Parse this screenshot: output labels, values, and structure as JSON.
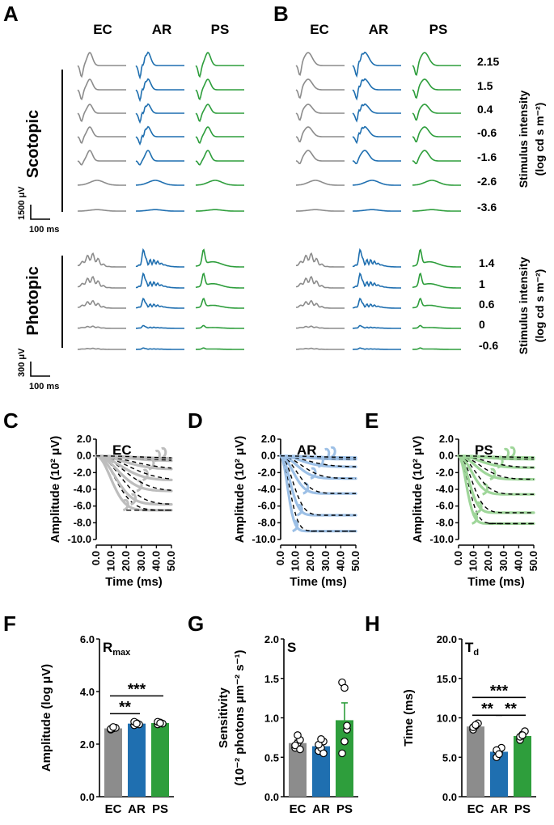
{
  "panels": {
    "A": "A",
    "B": "B",
    "C": "C",
    "D": "D",
    "E": "E",
    "F": "F",
    "G": "G",
    "H": "H"
  },
  "groups": [
    "EC",
    "AR",
    "PS"
  ],
  "colors": {
    "EC": "#8c8c8c",
    "AR": "#1f6fb0",
    "PS": "#2e9e3c",
    "EC_light": "#bdbdbd",
    "AR_light": "#9dc0e6",
    "PS_light": "#9fd69a"
  },
  "erg": {
    "scotopic_label": "Scotopic",
    "photopic_label": "Photopic",
    "scotopic_intensities": [
      "2.15",
      "1.5",
      "0.4",
      "-0.6",
      "-1.6",
      "-2.6",
      "-3.6"
    ],
    "photopic_intensities": [
      "1.4",
      "1",
      "0.6",
      "0",
      "-0.6"
    ],
    "intensity_axis_label": "Stimulus intensity",
    "intensity_axis_unit": "(log cd s m⁻²)",
    "scotopic_scale_amp": "1500 μV",
    "scotopic_scale_time": "100 ms",
    "photopic_scale_amp": "300 μV",
    "photopic_scale_time": "100 ms"
  },
  "chart_data": [
    {
      "type": "line",
      "panel": "C",
      "group": "EC",
      "title": "EC",
      "xlabel": "Time (ms)",
      "ylabel": "Amplitude (10² μV)",
      "xticks": [
        "0.0",
        "10.0",
        "20.0",
        "30.0",
        "40.0",
        "50.0"
      ],
      "yticks": [
        "2.0",
        "0.0",
        "-2.0",
        "-4.0",
        "-6.0",
        "-8.0",
        "-10.0"
      ],
      "xlim": [
        0,
        50
      ],
      "ylim": [
        -10,
        2
      ],
      "trough_amplitudes": [
        -6.5,
        -5.8,
        -4.2,
        -2.9,
        -1.6,
        -0.6,
        -0.3
      ],
      "trough_times": [
        19,
        24,
        28,
        32,
        36,
        40,
        44
      ],
      "rmax_fit": -6.5
    },
    {
      "type": "line",
      "panel": "D",
      "group": "AR",
      "title": "AR",
      "xlabel": "Time (ms)",
      "ylabel": "Amplitude (10² μV)",
      "xticks": [
        "0.0",
        "10.0",
        "20.0",
        "30.0",
        "40.0",
        "50.0"
      ],
      "yticks": [
        "2.0",
        "0.0",
        "-2.0",
        "-4.0",
        "-6.0",
        "-8.0",
        "-10.0"
      ],
      "xlim": [
        0,
        50
      ],
      "ylim": [
        -10,
        2
      ],
      "trough_amplitudes": [
        -9.0,
        -7.1,
        -4.5,
        -2.7,
        -1.3,
        -0.4,
        -0.2
      ],
      "trough_times": [
        9,
        12,
        16,
        21,
        26,
        30,
        34
      ],
      "rmax_fit": -9.0
    },
    {
      "type": "line",
      "panel": "E",
      "group": "PS",
      "title": "PS",
      "xlabel": "Time (ms)",
      "ylabel": "Amplitude (10² μV)",
      "xticks": [
        "0.0",
        "10.0",
        "20.0",
        "30.0",
        "40.0",
        "50.0"
      ],
      "yticks": [
        "2.0",
        "0.0",
        "-2.0",
        "-4.0",
        "-6.0",
        "-8.0",
        "-10.0"
      ],
      "xlim": [
        0,
        50
      ],
      "ylim": [
        -10,
        2
      ],
      "trough_amplitudes": [
        -8.1,
        -6.8,
        -4.6,
        -2.8,
        -1.4,
        -0.4,
        -0.2
      ],
      "trough_times": [
        10,
        13,
        17,
        22,
        27,
        31,
        35
      ],
      "rmax_fit": -8.1
    },
    {
      "type": "bar",
      "panel": "F",
      "title": "R",
      "title_sub": "max",
      "categories": [
        "EC",
        "AR",
        "PS"
      ],
      "values": [
        2.6,
        2.78,
        2.8
      ],
      "errors": [
        0.03,
        0.04,
        0.03
      ],
      "points": [
        [
          2.55,
          2.6,
          2.62,
          2.58,
          2.65
        ],
        [
          2.72,
          2.8,
          2.75,
          2.85,
          2.78
        ],
        [
          2.75,
          2.82,
          2.78,
          2.85,
          2.8
        ]
      ],
      "ylabel": "Amplitude (log μV)",
      "yticks": [
        "0.0",
        "2.0",
        "4.0",
        "6.0"
      ],
      "ylim": [
        0,
        6
      ],
      "significance": [
        {
          "pair": [
            "EC",
            "AR"
          ],
          "label": "**"
        },
        {
          "pair": [
            "EC",
            "PS"
          ],
          "label": "***"
        }
      ]
    },
    {
      "type": "bar",
      "panel": "G",
      "title": "S",
      "categories": [
        "EC",
        "AR",
        "PS"
      ],
      "values": [
        0.68,
        0.64,
        0.97
      ],
      "errors": [
        0.04,
        0.05,
        0.22
      ],
      "points": [
        [
          0.62,
          0.68,
          0.72,
          0.65,
          0.78,
          0.6
        ],
        [
          0.58,
          0.62,
          0.7,
          0.66,
          0.73,
          0.55
        ],
        [
          0.55,
          0.7,
          0.85,
          1.45,
          1.38,
          0.9
        ]
      ],
      "ylabel": "Sensitivity",
      "ylabel2": "(10⁻² photons μm⁻² s⁻¹)",
      "yticks": [
        "0.0",
        "0.5",
        "1.0",
        "1.5",
        "2.0"
      ],
      "ylim": [
        0,
        2
      ],
      "significance": []
    },
    {
      "type": "bar",
      "panel": "H",
      "title": "T",
      "title_sub": "d",
      "categories": [
        "EC",
        "AR",
        "PS"
      ],
      "values": [
        8.9,
        5.7,
        7.7
      ],
      "errors": [
        0.25,
        0.35,
        0.3
      ],
      "points": [
        [
          8.5,
          9.0,
          9.3,
          8.8,
          9.1
        ],
        [
          5.0,
          5.6,
          6.2,
          5.9,
          5.4
        ],
        [
          7.2,
          7.9,
          8.3,
          7.6,
          7.8
        ]
      ],
      "ylabel": "Time (ms)",
      "yticks": [
        "0.0",
        "5.0",
        "10.0",
        "15.0",
        "20.0"
      ],
      "ylim": [
        0,
        20
      ],
      "significance": [
        {
          "pair": [
            "EC",
            "AR"
          ],
          "label": "**"
        },
        {
          "pair": [
            "AR",
            "PS"
          ],
          "label": "**"
        },
        {
          "pair": [
            "EC",
            "PS"
          ],
          "label": "***"
        }
      ]
    }
  ]
}
